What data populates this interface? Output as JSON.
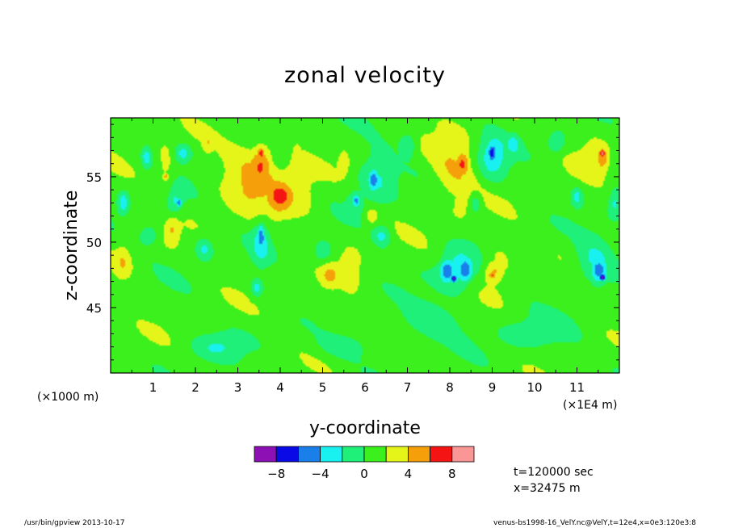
{
  "chart_data": {
    "type": "heatmap",
    "title": "zonal velocity",
    "xlabel": "y-coordinate",
    "ylabel": "z-coordinate",
    "x_unit_note": "(×1E4 m)",
    "y_unit_note": "(×1000 m)",
    "xlim": [
      0,
      12
    ],
    "ylim": [
      40,
      59.5
    ],
    "x_ticks": [
      "1",
      "2",
      "3",
      "4",
      "5",
      "6",
      "7",
      "8",
      "9",
      "10",
      "11"
    ],
    "y_ticks": [
      "45",
      "50",
      "55"
    ],
    "colorbar": {
      "levels": [
        -10,
        -8,
        -6,
        -4,
        -2,
        0,
        2,
        4,
        6,
        8,
        10
      ],
      "colors": [
        "#8c10b4",
        "#0a0ae6",
        "#1a7fe8",
        "#19f0f0",
        "#1ef07a",
        "#3cf01e",
        "#e6f519",
        "#f5a00a",
        "#f51414",
        "#fa9696"
      ],
      "tick_labels": [
        "−8",
        "−4",
        "0",
        "4",
        "8"
      ],
      "tick_values": [
        -8,
        -4,
        0,
        4,
        8
      ]
    },
    "background_value": 1,
    "features": [
      {
        "y": 3.55,
        "z": 56.8,
        "value": 8.5,
        "ry": 0.1,
        "rz": 0.5
      },
      {
        "y": 3.55,
        "z": 56.0,
        "value": 6.5,
        "ry": 0.3,
        "rz": 1.6
      },
      {
        "y": 4.0,
        "z": 53.5,
        "value": 6.0,
        "ry": 0.35,
        "rz": 1.4
      },
      {
        "y": 3.4,
        "z": 55.0,
        "value": 4.5,
        "ry": 0.75,
        "rz": 2.6
      },
      {
        "y": 4.3,
        "z": 54.5,
        "value": 3.5,
        "ry": 0.6,
        "rz": 3.0
      },
      {
        "y": 1.3,
        "z": 55.0,
        "value": 6.0,
        "ry": 0.08,
        "rz": 0.3
      },
      {
        "y": 1.3,
        "z": 55.5,
        "value": 3.0,
        "ry": 0.2,
        "rz": 1.8
      },
      {
        "y": 0.85,
        "z": 56.5,
        "value": -3.0,
        "ry": 0.12,
        "rz": 0.8
      },
      {
        "y": 1.7,
        "z": 56.8,
        "value": -3.0,
        "ry": 0.2,
        "rz": 0.7
      },
      {
        "y": 1.6,
        "z": 53.0,
        "value": -5.0,
        "ry": 0.08,
        "rz": 0.4
      },
      {
        "y": 1.5,
        "z": 53.0,
        "value": -2.5,
        "ry": 0.2,
        "rz": 1.0
      },
      {
        "y": 1.45,
        "z": 51.0,
        "value": 3.5,
        "ry": 0.15,
        "rz": 1.0
      },
      {
        "y": 0.3,
        "z": 48.5,
        "value": 3.5,
        "ry": 0.2,
        "rz": 1.3
      },
      {
        "y": 0.3,
        "z": 53.0,
        "value": -3.0,
        "ry": 0.12,
        "rz": 0.8
      },
      {
        "y": 2.3,
        "z": 57.5,
        "value": 3.0,
        "ry": 0.12,
        "rz": 0.8
      },
      {
        "y": 3.55,
        "z": 50.5,
        "value": -5.0,
        "ry": 0.1,
        "rz": 1.0
      },
      {
        "y": 3.55,
        "z": 50.0,
        "value": -2.5,
        "ry": 0.2,
        "rz": 1.8
      },
      {
        "y": 3.45,
        "z": 46.5,
        "value": -3.0,
        "ry": 0.15,
        "rz": 0.7
      },
      {
        "y": 4.4,
        "z": 56.8,
        "value": 3.0,
        "ry": 0.15,
        "rz": 1.0
      },
      {
        "y": 5.15,
        "z": 47.5,
        "value": 3.5,
        "ry": 0.25,
        "rz": 1.2
      },
      {
        "y": 5.65,
        "z": 48.0,
        "value": 3.5,
        "ry": 0.25,
        "rz": 1.5
      },
      {
        "y": 6.2,
        "z": 54.8,
        "value": -5.5,
        "ry": 0.15,
        "rz": 1.0
      },
      {
        "y": 6.25,
        "z": 55.0,
        "value": -2.5,
        "ry": 0.45,
        "rz": 2.0
      },
      {
        "y": 5.8,
        "z": 53.2,
        "value": -5.0,
        "ry": 0.1,
        "rz": 0.5
      },
      {
        "y": 5.8,
        "z": 53.2,
        "value": -2.5,
        "ry": 0.2,
        "rz": 0.9
      },
      {
        "y": 5.5,
        "z": 56.0,
        "value": 3.0,
        "ry": 0.12,
        "rz": 0.8
      },
      {
        "y": 6.15,
        "z": 52.0,
        "value": 3.5,
        "ry": 0.15,
        "rz": 0.7
      },
      {
        "y": 6.4,
        "z": 50.5,
        "value": -2.5,
        "ry": 0.2,
        "rz": 0.8
      },
      {
        "y": 7.0,
        "z": 57.5,
        "value": -2.5,
        "ry": 0.2,
        "rz": 0.9
      },
      {
        "y": 8.3,
        "z": 56.0,
        "value": 6.5,
        "ry": 0.18,
        "rz": 1.0
      },
      {
        "y": 8.1,
        "z": 55.5,
        "value": 4.0,
        "ry": 0.55,
        "rz": 2.5
      },
      {
        "y": 8.3,
        "z": 53.2,
        "value": 3.0,
        "ry": 0.35,
        "rz": 1.5
      },
      {
        "y": 9.0,
        "z": 56.8,
        "value": -7.0,
        "ry": 0.1,
        "rz": 0.7
      },
      {
        "y": 9.0,
        "z": 56.5,
        "value": -3.0,
        "ry": 0.35,
        "rz": 1.8
      },
      {
        "y": 8.1,
        "z": 47.2,
        "value": -9.0,
        "ry": 0.08,
        "rz": 0.3
      },
      {
        "y": 7.95,
        "z": 47.8,
        "value": -6.0,
        "ry": 0.2,
        "rz": 1.0
      },
      {
        "y": 8.35,
        "z": 47.8,
        "value": -6.0,
        "ry": 0.2,
        "rz": 1.0
      },
      {
        "y": 8.15,
        "z": 47.8,
        "value": -3.0,
        "ry": 0.45,
        "rz": 1.8
      },
      {
        "y": 9.0,
        "z": 47.5,
        "value": 7.0,
        "ry": 0.1,
        "rz": 0.35
      },
      {
        "y": 9.05,
        "z": 47.8,
        "value": 5.0,
        "ry": 0.25,
        "rz": 0.9
      },
      {
        "y": 9.15,
        "z": 48.5,
        "value": 3.0,
        "ry": 0.35,
        "rz": 1.8
      },
      {
        "y": 8.6,
        "z": 53.0,
        "value": -2.5,
        "ry": 0.15,
        "rz": 0.8
      },
      {
        "y": 9.5,
        "z": 57.5,
        "value": -2.5,
        "ry": 0.15,
        "rz": 0.7
      },
      {
        "y": 11.6,
        "z": 56.8,
        "value": 9.5,
        "ry": 0.06,
        "rz": 0.35
      },
      {
        "y": 11.6,
        "z": 56.5,
        "value": 5.5,
        "ry": 0.15,
        "rz": 1.0
      },
      {
        "y": 11.4,
        "z": 57.0,
        "value": 3.0,
        "ry": 0.4,
        "rz": 1.5
      },
      {
        "y": 11.6,
        "z": 47.3,
        "value": -9.0,
        "ry": 0.08,
        "rz": 0.3
      },
      {
        "y": 11.5,
        "z": 47.8,
        "value": -5.5,
        "ry": 0.22,
        "rz": 1.0
      },
      {
        "y": 11.4,
        "z": 48.5,
        "value": -2.5,
        "ry": 0.45,
        "rz": 1.8
      },
      {
        "y": 11.9,
        "z": 53.0,
        "value": -2.5,
        "ry": 0.15,
        "rz": 1.2
      },
      {
        "y": 11.0,
        "z": 53.5,
        "value": -2.5,
        "ry": 0.12,
        "rz": 0.7
      },
      {
        "y": 10.5,
        "z": 57.5,
        "value": -2.0,
        "ry": 0.2,
        "rz": 0.8
      },
      {
        "y": 2.2,
        "z": 49.5,
        "value": -2.5,
        "ry": 0.2,
        "rz": 0.9
      },
      {
        "y": 0.9,
        "z": 50.5,
        "value": -2.5,
        "ry": 0.2,
        "rz": 0.7
      },
      {
        "y": 5.0,
        "z": 49.0,
        "value": -2.0,
        "ry": 0.25,
        "rz": 1.0
      },
      {
        "y": 7.5,
        "z": 44.0,
        "value": -1.5,
        "ry": 0.8,
        "rz": 1.5
      },
      {
        "y": 2.5,
        "z": 42.0,
        "value": -1.5,
        "ry": 0.6,
        "rz": 1.0
      },
      {
        "y": 10.0,
        "z": 43.0,
        "value": -1.5,
        "ry": 0.8,
        "rz": 1.2
      },
      {
        "y": 5.5,
        "z": 42.0,
        "value": -1.0,
        "ry": 0.7,
        "rz": 1.0
      }
    ]
  },
  "info": {
    "time": "t=120000 sec",
    "xpos": "x=32475 m"
  },
  "footer": {
    "left": "/usr/bin/gpview   2013-10-17",
    "right": "venus-bs1998-16_VelY.nc@VelY,t=12e4,x=0e3:120e3:8"
  }
}
